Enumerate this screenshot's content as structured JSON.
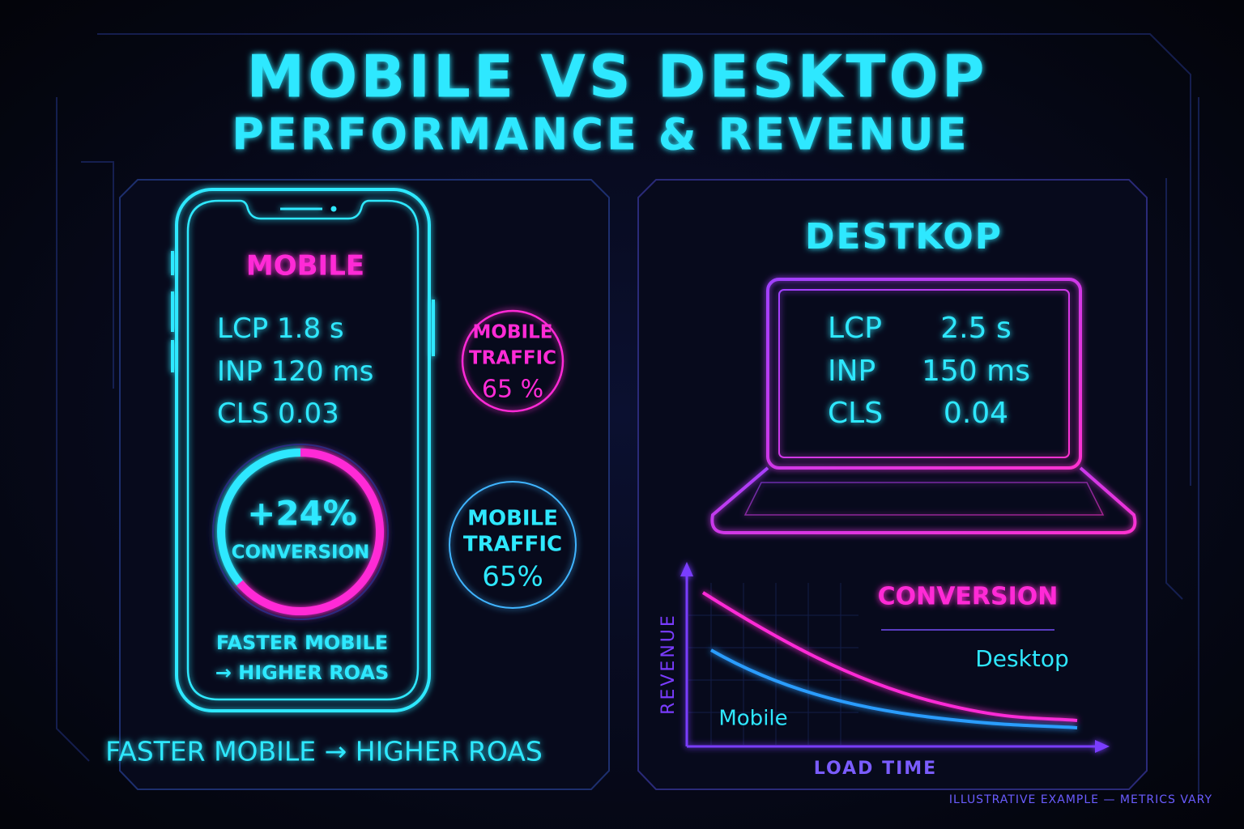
{
  "header": {
    "title_line1": "MOBILE VS DESKTOP",
    "title_line2": "PERFORMANCE & REVENUE"
  },
  "mobile": {
    "title": "MOBILE",
    "metrics": [
      {
        "label": "LCP",
        "value": "1.8 s"
      },
      {
        "label": "INP",
        "value": "120 ms"
      },
      {
        "label": "CLS",
        "value": "0.03"
      }
    ],
    "ring": {
      "value": "+24%",
      "label": "CONVERSION"
    },
    "note_line1": "FASTER MOBILE",
    "note_line2": "→ HIGHER ROAS"
  },
  "badges": [
    {
      "lines": [
        "MOBILE",
        "TRAFFIC",
        "65 %"
      ]
    },
    {
      "lines": [
        "MOBILE",
        "TRAFFIC",
        "65%"
      ]
    }
  ],
  "tagline": "FASTER MOBILE → HIGHER ROAS",
  "desktop": {
    "title": "DESTKOP",
    "metrics": [
      {
        "label": "LCP",
        "value": "2.5 s"
      },
      {
        "label": "INP",
        "value": "150 ms"
      },
      {
        "label": "CLS",
        "value": "0.04"
      }
    ]
  },
  "trend": {
    "y_label": "REVENUE",
    "x_label": "LOAD TIME",
    "heading": "CONVERSION",
    "series": [
      "Desktop",
      "Mobile"
    ]
  },
  "footer": "ILLUSTRATIVE EXAMPLE — METRICS VARY"
}
